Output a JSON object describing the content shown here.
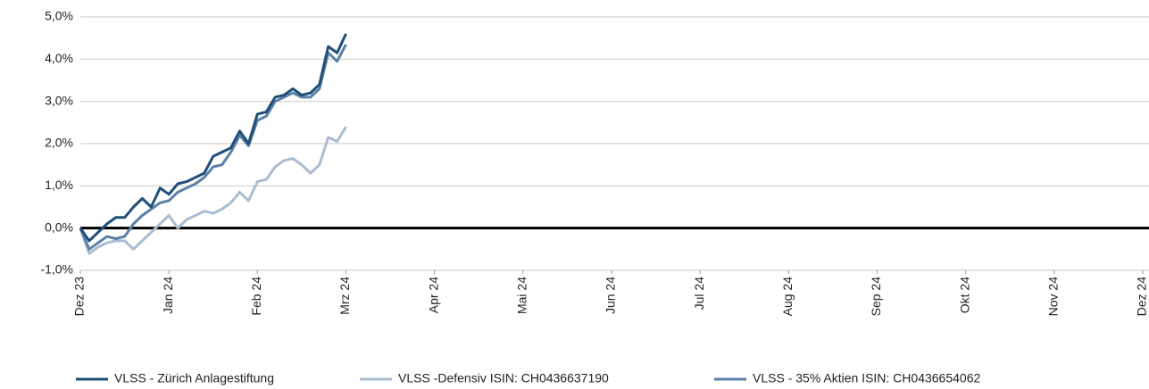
{
  "chart_data": {
    "type": "line",
    "x": [
      0,
      0.1,
      0.2,
      0.3,
      0.4,
      0.5,
      0.6,
      0.7,
      0.8,
      0.9,
      1.0,
      1.1,
      1.2,
      1.3,
      1.4,
      1.5,
      1.6,
      1.7,
      1.8,
      1.9,
      2.0,
      2.1,
      2.2,
      2.3,
      2.4,
      2.5,
      2.6,
      2.7,
      2.8,
      2.9,
      3.0
    ],
    "series": [
      {
        "name": "VLSS - Zürich Anlagestiftung",
        "color": "#1f4e79",
        "values": [
          0,
          -0.3,
          -0.1,
          0.1,
          0.25,
          0.25,
          0.5,
          0.7,
          0.5,
          0.95,
          0.8,
          1.05,
          1.1,
          1.2,
          1.3,
          1.7,
          1.8,
          1.9,
          2.3,
          2.0,
          2.7,
          2.75,
          3.1,
          3.15,
          3.3,
          3.15,
          3.2,
          3.4,
          4.3,
          4.15,
          4.6
        ]
      },
      {
        "name": "VLSS -Defensiv ISIN: CH0436637190",
        "color": "#a9bcd0",
        "values": [
          0,
          -0.6,
          -0.45,
          -0.35,
          -0.3,
          -0.3,
          -0.5,
          -0.3,
          -0.1,
          0.1,
          0.3,
          0.0,
          0.2,
          0.3,
          0.4,
          0.35,
          0.45,
          0.6,
          0.85,
          0.65,
          1.1,
          1.15,
          1.45,
          1.6,
          1.65,
          1.5,
          1.3,
          1.5,
          2.15,
          2.05,
          2.4
        ]
      },
      {
        "name": "VLSS - 35% Aktien ISIN: CH0436654062",
        "color": "#5b80a8",
        "values": [
          0,
          -0.5,
          -0.35,
          -0.2,
          -0.25,
          -0.2,
          0.1,
          0.3,
          0.45,
          0.6,
          0.65,
          0.85,
          0.95,
          1.05,
          1.2,
          1.45,
          1.5,
          1.8,
          2.2,
          1.95,
          2.55,
          2.65,
          3.0,
          3.1,
          3.2,
          3.1,
          3.1,
          3.3,
          4.15,
          3.95,
          4.35
        ]
      }
    ],
    "xlim": [
      0,
      12
    ],
    "xticks": [
      {
        "value": 0,
        "label": "Dez 23"
      },
      {
        "value": 1,
        "label": "Jan 24"
      },
      {
        "value": 2,
        "label": "Feb 24"
      },
      {
        "value": 3,
        "label": "Mrz 24"
      },
      {
        "value": 4,
        "label": "Apr 24"
      },
      {
        "value": 5,
        "label": "Mai 24"
      },
      {
        "value": 6,
        "label": "Jun 24"
      },
      {
        "value": 7,
        "label": "Jul 24"
      },
      {
        "value": 8,
        "label": "Aug 24"
      },
      {
        "value": 9,
        "label": "Sep 24"
      },
      {
        "value": 10,
        "label": "Okt 24"
      },
      {
        "value": 11,
        "label": "Nov 24"
      },
      {
        "value": 12,
        "label": "Dez 24"
      }
    ],
    "ylim": [
      -1,
      5
    ],
    "yticks": [
      {
        "value": -1,
        "label": "-1,0%"
      },
      {
        "value": 0,
        "label": "0,0%"
      },
      {
        "value": 1,
        "label": "1,0%"
      },
      {
        "value": 2,
        "label": "2,0%"
      },
      {
        "value": 3,
        "label": "3,0%"
      },
      {
        "value": 4,
        "label": "4,0%"
      },
      {
        "value": 5,
        "label": "5,0%"
      }
    ],
    "grid": true,
    "legend": "bottom"
  }
}
